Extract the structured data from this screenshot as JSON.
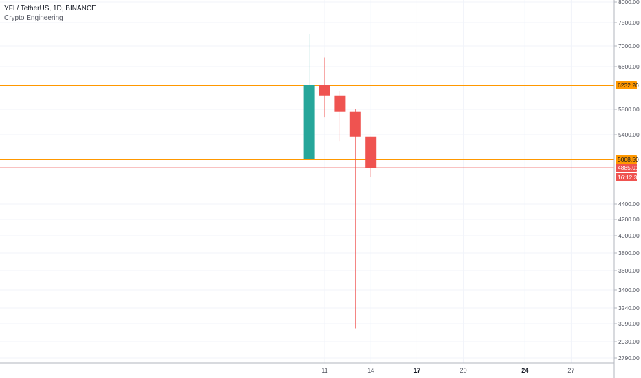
{
  "header": {
    "title": "YFI / TetherUS, 1D, BINANCE",
    "indicator": "Crypto Engineering"
  },
  "colors": {
    "up": "#26a69a",
    "down": "#ef5350",
    "level": "#ff9800",
    "price_line": "#ef5350",
    "axis_text": "#50535e",
    "grid": "#f0f3fa"
  },
  "chart_data": {
    "type": "candlestick",
    "y_axis": {
      "position": "right",
      "ticks": [
        {
          "value": 8000,
          "label": "8000.00"
        },
        {
          "value": 7500,
          "label": "7500.00"
        },
        {
          "value": 7000,
          "label": "7000.00"
        },
        {
          "value": 6600,
          "label": "6600.00"
        },
        {
          "value": 5800,
          "label": "5800.00"
        },
        {
          "value": 5400,
          "label": "5400.00"
        },
        {
          "value": 4400,
          "label": "4400.00"
        },
        {
          "value": 4200,
          "label": "4200.00"
        },
        {
          "value": 4000,
          "label": "4000.00"
        },
        {
          "value": 3800,
          "label": "3800.00"
        },
        {
          "value": 3600,
          "label": "3600.00"
        },
        {
          "value": 3400,
          "label": "3400.00"
        },
        {
          "value": 3240,
          "label": "3240.00"
        },
        {
          "value": 3090,
          "label": "3090.00"
        },
        {
          "value": 2930,
          "label": "2930.00"
        },
        {
          "value": 2790,
          "label": "2790.00"
        }
      ]
    },
    "x_axis": {
      "ticks": [
        {
          "day": 11,
          "label": "11",
          "bold": false
        },
        {
          "day": 14,
          "label": "14",
          "bold": false
        },
        {
          "day": 17,
          "label": "17",
          "bold": true
        },
        {
          "day": 20,
          "label": "20",
          "bold": false
        },
        {
          "day": 24,
          "label": "24",
          "bold": true
        },
        {
          "day": 27,
          "label": "27",
          "bold": false
        }
      ]
    },
    "candles": [
      {
        "day": 10,
        "open": 5008.5,
        "high": 7250,
        "low": 5008.5,
        "close": 6232.2
      },
      {
        "day": 11,
        "open": 6232.2,
        "high": 6780,
        "low": 5680,
        "close": 6050
      },
      {
        "day": 12,
        "open": 6050,
        "high": 6130,
        "low": 5300,
        "close": 5760
      },
      {
        "day": 13,
        "open": 5760,
        "high": 5800,
        "low": 3050,
        "close": 5370
      },
      {
        "day": 14,
        "open": 5370,
        "high": 5370,
        "low": 4760,
        "close": 4885.01
      }
    ],
    "levels": [
      {
        "value": 6232.2,
        "label": "6232.20"
      },
      {
        "value": 5008.5,
        "label": "5008.50"
      }
    ],
    "last_price": {
      "value": 4885.01,
      "label": "4885.01",
      "countdown": "16:12:32"
    }
  }
}
